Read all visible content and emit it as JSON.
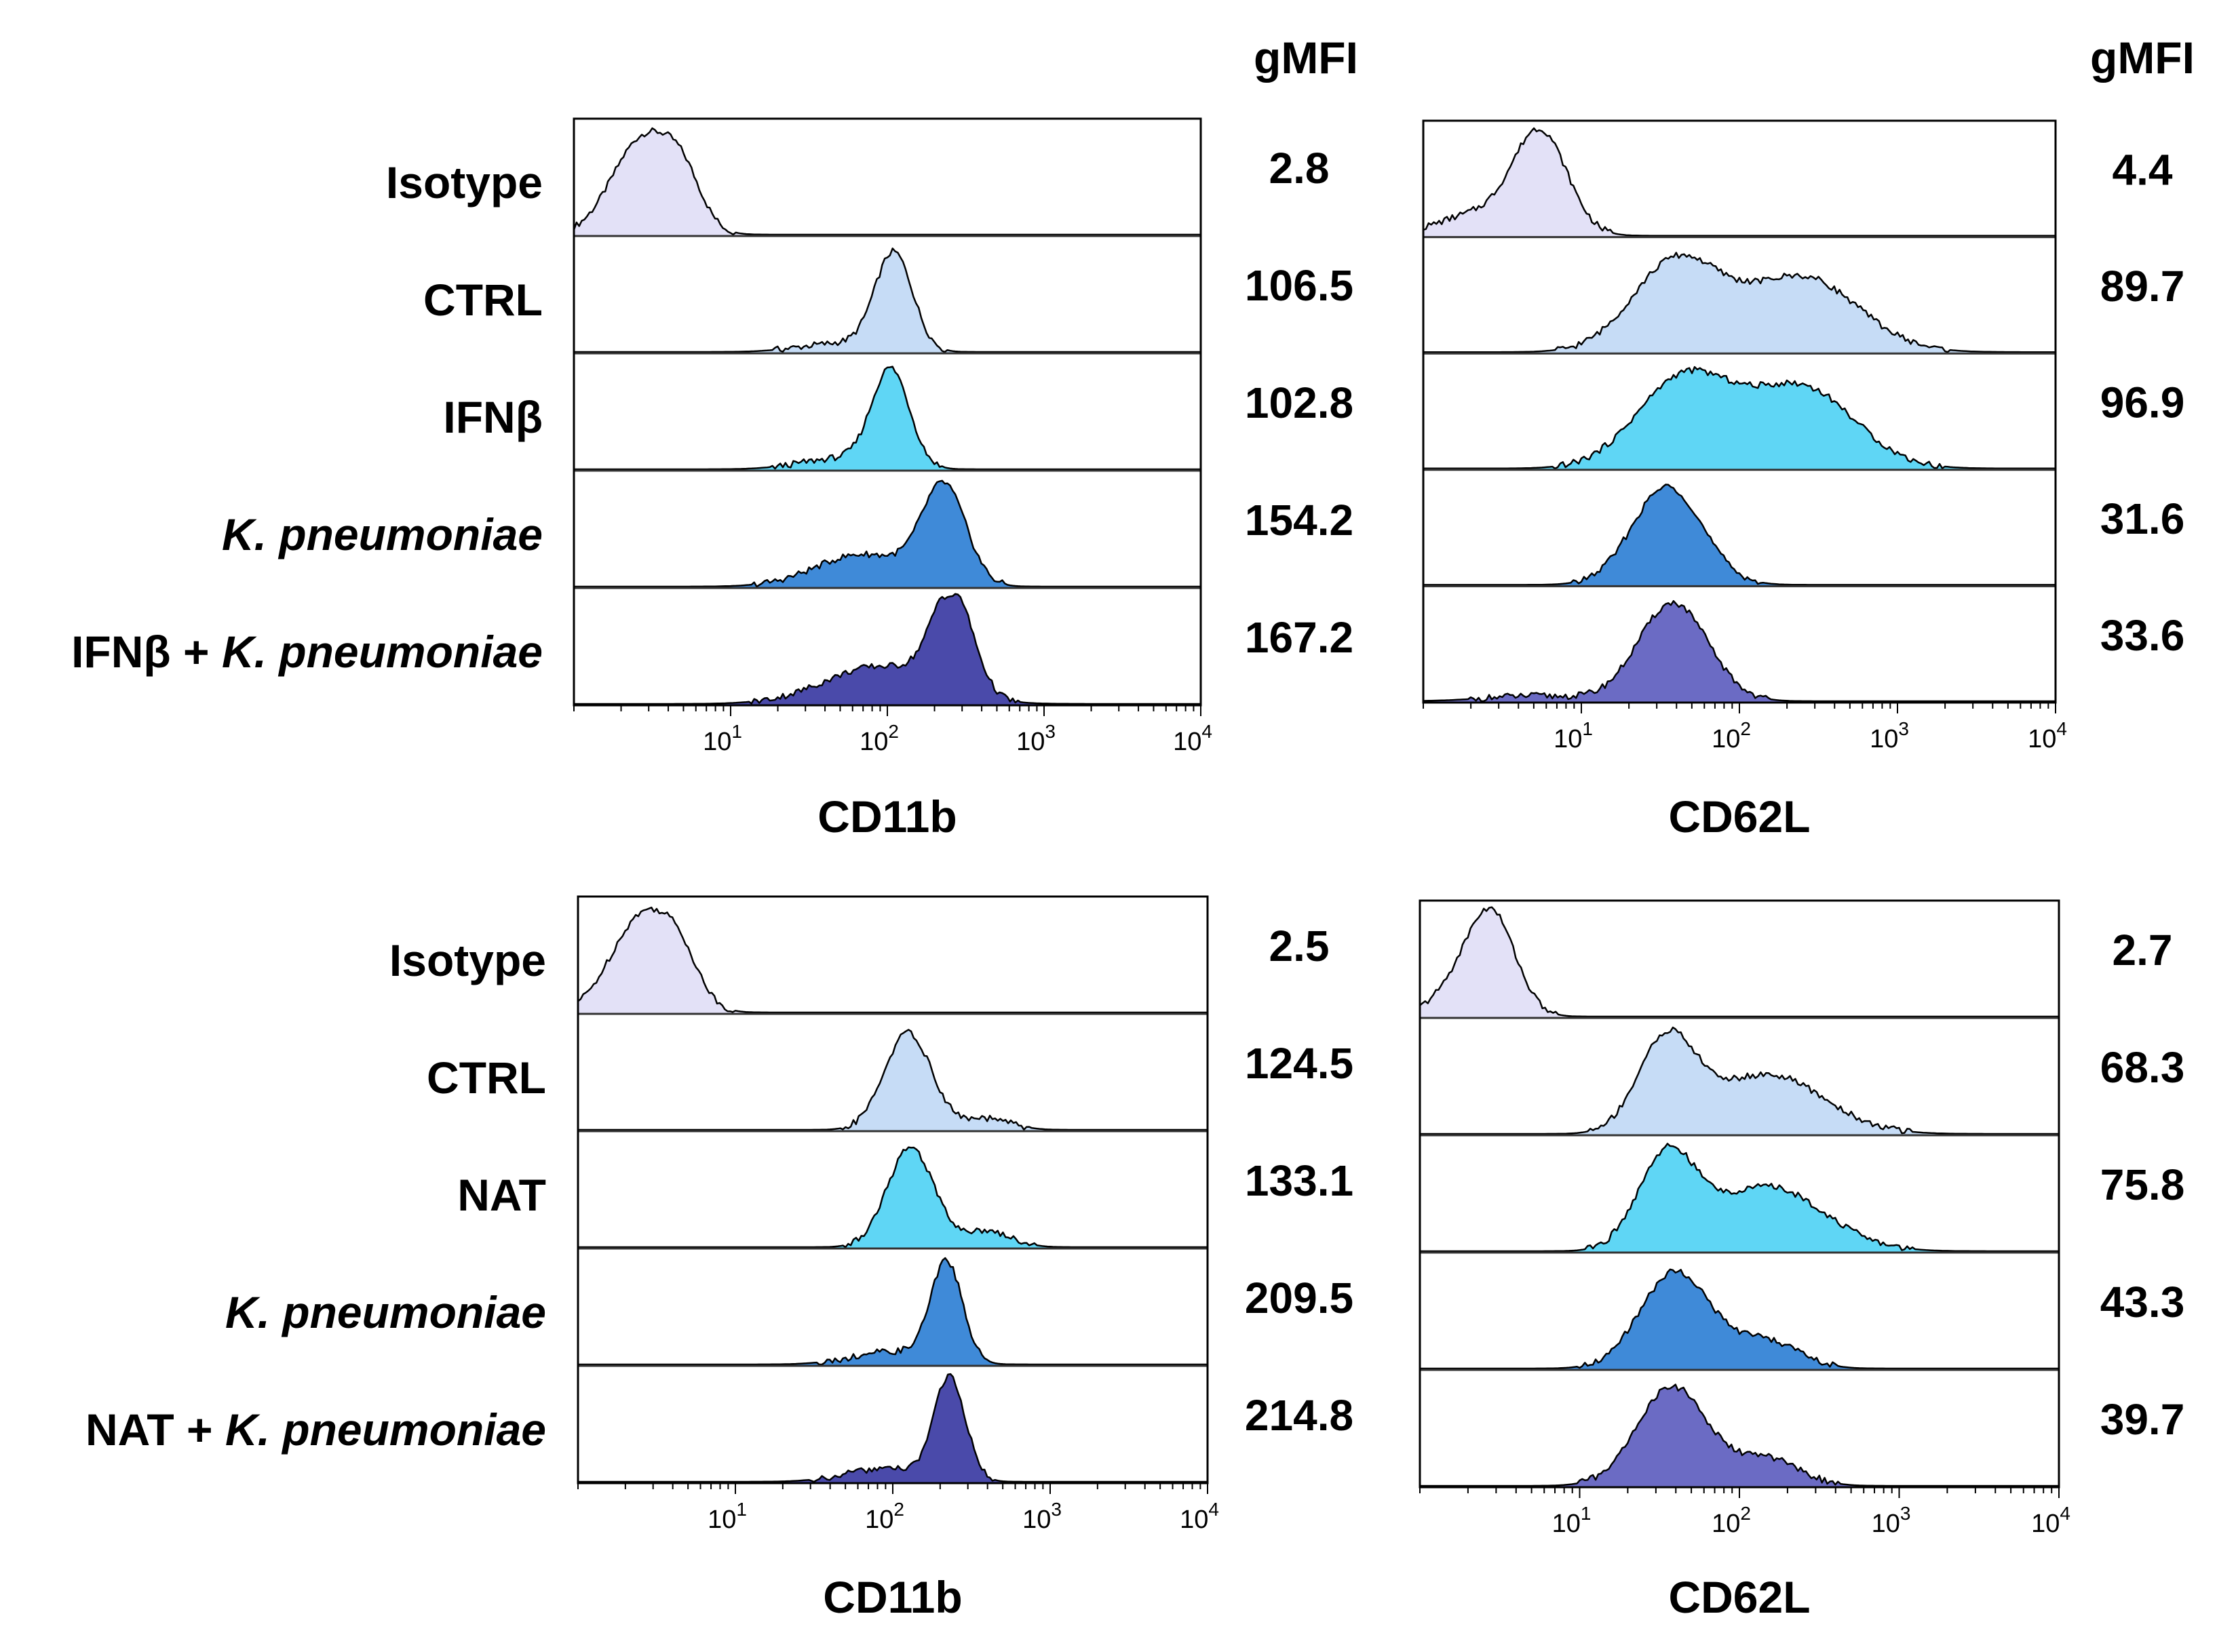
{
  "figure": {
    "gmfi_header": "gMFI",
    "colors": {
      "isotype": "#e3e1f7",
      "ctrl": "#c6dcf6",
      "treatment": "#5fd6f5",
      "kp": "#3f8ad8",
      "combo": "#4a4aaa",
      "combo_lower": "#6b6bc4",
      "line": "#000000"
    }
  },
  "chart_data": [
    {
      "id": "top-cd11b",
      "type": "histogram",
      "title": "",
      "xlabel": "CD11b",
      "x_scale": "log10",
      "xlim": [
        1,
        10000
      ],
      "x_ticks": [
        10,
        100,
        1000,
        10000
      ],
      "x_tick_labels": [
        [
          "10",
          "1"
        ],
        [
          "10",
          "2"
        ],
        [
          "10",
          "3"
        ],
        [
          "10",
          "4"
        ]
      ],
      "row_labels": [
        {
          "parts": [
            {
              "t": "Isotype",
              "i": false
            }
          ]
        },
        {
          "parts": [
            {
              "t": "CTRL",
              "i": false
            }
          ]
        },
        {
          "parts": [
            {
              "t": "IFN",
              "i": false
            },
            {
              "t": "β",
              "i": false
            }
          ]
        },
        {
          "parts": [
            {
              "t": "K. pneumoniae",
              "i": true
            }
          ]
        },
        {
          "parts": [
            {
              "t": "IFN",
              "i": false
            },
            {
              "t": "β",
              "i": false
            },
            {
              "t": " + ",
              "i": false
            },
            {
              "t": "K. pneumoniae",
              "i": true
            }
          ]
        }
      ],
      "series": [
        {
          "name": "Isotype",
          "gMFI": "2.8",
          "color": "isotype",
          "peaks": [
            {
              "c": 2.8,
              "w": 0.2,
              "h": 0.9
            },
            {
              "c": 5,
              "w": 0.12,
              "h": 0.35
            }
          ]
        },
        {
          "name": "CTRL",
          "gMFI": "106.5",
          "color": "ctrl",
          "peaks": [
            {
              "c": 110,
              "w": 0.12,
              "h": 0.9
            },
            {
              "c": 50,
              "w": 0.25,
              "h": 0.08
            }
          ]
        },
        {
          "name": "IFNβ",
          "gMFI": "102.8",
          "color": "treatment",
          "peaks": [
            {
              "c": 105,
              "w": 0.12,
              "h": 0.9
            },
            {
              "c": 50,
              "w": 0.25,
              "h": 0.1
            }
          ]
        },
        {
          "name": "K. pneumoniae",
          "gMFI": "154.2",
          "color": "kp",
          "peaks": [
            {
              "c": 230,
              "w": 0.14,
              "h": 0.9
            },
            {
              "c": 70,
              "w": 0.3,
              "h": 0.3
            }
          ]
        },
        {
          "name": "IFNβ + K. pneumoniae",
          "gMFI": "167.2",
          "color": "combo",
          "peaks": [
            {
              "c": 260,
              "w": 0.13,
              "h": 0.95
            },
            {
              "c": 90,
              "w": 0.35,
              "h": 0.35
            }
          ]
        }
      ]
    },
    {
      "id": "top-cd62l",
      "type": "histogram",
      "title": "",
      "xlabel": "CD62L",
      "x_scale": "log10",
      "xlim": [
        1,
        10000
      ],
      "x_ticks": [
        10,
        100,
        1000,
        10000
      ],
      "x_tick_labels": [
        [
          "10",
          "1"
        ],
        [
          "10",
          "2"
        ],
        [
          "10",
          "3"
        ],
        [
          "10",
          "4"
        ]
      ],
      "row_labels": [],
      "series": [
        {
          "name": "Isotype",
          "gMFI": "4.4",
          "color": "isotype",
          "peaks": [
            {
              "c": 5.5,
              "w": 0.17,
              "h": 0.95
            },
            {
              "c": 2.2,
              "w": 0.25,
              "h": 0.2
            }
          ]
        },
        {
          "name": "CTRL",
          "gMFI": "89.7",
          "color": "ctrl",
          "peaks": [
            {
              "c": 40,
              "w": 0.28,
              "h": 0.85
            },
            {
              "c": 250,
              "w": 0.35,
              "h": 0.7
            }
          ]
        },
        {
          "name": "IFNβ",
          "gMFI": "96.9",
          "color": "treatment",
          "peaks": [
            {
              "c": 45,
              "w": 0.3,
              "h": 0.85
            },
            {
              "c": 250,
              "w": 0.33,
              "h": 0.75
            }
          ]
        },
        {
          "name": "K. pneumoniae",
          "gMFI": "31.6",
          "color": "kp",
          "peaks": [
            {
              "c": 35,
              "w": 0.22,
              "h": 0.92
            }
          ]
        },
        {
          "name": "IFNβ + K. pneumoniae",
          "gMFI": "33.6",
          "color": "combo_lower",
          "peaks": [
            {
              "c": 38,
              "w": 0.22,
              "h": 0.92
            },
            {
              "c": 5,
              "w": 0.3,
              "h": 0.05
            }
          ]
        }
      ]
    },
    {
      "id": "bottom-cd11b",
      "type": "histogram",
      "title": "",
      "xlabel": "CD11b",
      "x_scale": "log10",
      "xlim": [
        1,
        10000
      ],
      "x_ticks": [
        10,
        100,
        1000,
        10000
      ],
      "x_tick_labels": [
        [
          "10",
          "1"
        ],
        [
          "10",
          "2"
        ],
        [
          "10",
          "3"
        ],
        [
          "10",
          "4"
        ]
      ],
      "row_labels": [
        {
          "parts": [
            {
              "t": "Isotype",
              "i": false
            }
          ]
        },
        {
          "parts": [
            {
              "t": "CTRL",
              "i": false
            }
          ]
        },
        {
          "parts": [
            {
              "t": "NAT",
              "i": false
            }
          ]
        },
        {
          "parts": [
            {
              "t": "K. pneumoniae",
              "i": true
            }
          ]
        },
        {
          "parts": [
            {
              "t": "NAT + ",
              "i": false
            },
            {
              "t": "K. pneumoniae",
              "i": true
            }
          ]
        }
      ],
      "series": [
        {
          "name": "Isotype",
          "gMFI": "2.5",
          "color": "isotype",
          "peaks": [
            {
              "c": 2.6,
              "w": 0.2,
              "h": 0.9
            },
            {
              "c": 4.5,
              "w": 0.12,
              "h": 0.3
            }
          ]
        },
        {
          "name": "CTRL",
          "gMFI": "124.5",
          "color": "ctrl",
          "peaks": [
            {
              "c": 125,
              "w": 0.15,
              "h": 0.9
            },
            {
              "c": 400,
              "w": 0.15,
              "h": 0.1
            }
          ]
        },
        {
          "name": "NAT",
          "gMFI": "133.1",
          "color": "treatment",
          "peaks": [
            {
              "c": 130,
              "w": 0.15,
              "h": 0.92
            },
            {
              "c": 400,
              "w": 0.15,
              "h": 0.15
            }
          ]
        },
        {
          "name": "K. pneumoniae",
          "gMFI": "209.5",
          "color": "kp",
          "peaks": [
            {
              "c": 220,
              "w": 0.1,
              "h": 0.92
            },
            {
              "c": 100,
              "w": 0.25,
              "h": 0.12
            }
          ]
        },
        {
          "name": "NAT + K. pneumoniae",
          "gMFI": "214.8",
          "color": "combo",
          "peaks": [
            {
              "c": 230,
              "w": 0.1,
              "h": 0.95
            },
            {
              "c": 90,
              "w": 0.25,
              "h": 0.12
            }
          ]
        }
      ]
    },
    {
      "id": "bottom-cd62l",
      "type": "histogram",
      "title": "",
      "xlabel": "CD62L",
      "x_scale": "log10",
      "xlim": [
        1,
        10000
      ],
      "x_ticks": [
        10,
        100,
        1000,
        10000
      ],
      "x_tick_labels": [
        [
          "10",
          "1"
        ],
        [
          "10",
          "2"
        ],
        [
          "10",
          "3"
        ],
        [
          "10",
          "4"
        ]
      ],
      "row_labels": [],
      "series": [
        {
          "name": "Isotype",
          "gMFI": "2.7",
          "color": "isotype",
          "peaks": [
            {
              "c": 2.8,
              "w": 0.15,
              "h": 0.95
            },
            {
              "c": 1.6,
              "w": 0.15,
              "h": 0.2
            }
          ]
        },
        {
          "name": "CTRL",
          "gMFI": "68.3",
          "color": "ctrl",
          "peaks": [
            {
              "c": 35,
              "w": 0.18,
              "h": 0.85
            },
            {
              "c": 150,
              "w": 0.35,
              "h": 0.55
            }
          ]
        },
        {
          "name": "NAT",
          "gMFI": "75.8",
          "color": "treatment",
          "peaks": [
            {
              "c": 35,
              "w": 0.18,
              "h": 0.85
            },
            {
              "c": 150,
              "w": 0.35,
              "h": 0.6
            }
          ]
        },
        {
          "name": "K. pneumoniae",
          "gMFI": "43.3",
          "color": "kp",
          "peaks": [
            {
              "c": 40,
              "w": 0.22,
              "h": 0.9
            },
            {
              "c": 150,
              "w": 0.2,
              "h": 0.25
            }
          ]
        },
        {
          "name": "NAT + K. pneumoniae",
          "gMFI": "39.7",
          "color": "combo_lower",
          "peaks": [
            {
              "c": 38,
              "w": 0.22,
              "h": 0.92
            },
            {
              "c": 150,
              "w": 0.2,
              "h": 0.25
            }
          ]
        }
      ]
    }
  ]
}
